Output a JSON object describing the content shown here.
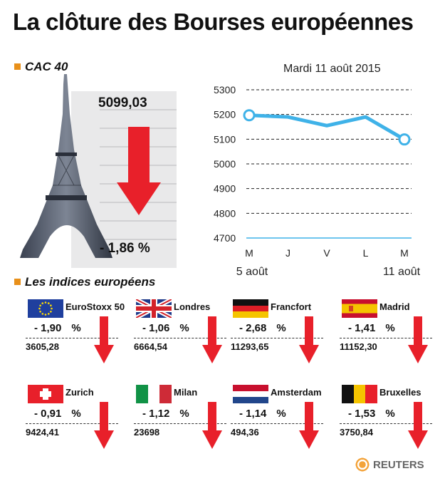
{
  "title": "La clôture des Bourses européennes",
  "cac": {
    "section_label": "CAC 40",
    "value": "5099,03",
    "change": "- 1,86  %"
  },
  "date": "Mardi 11 août 2015",
  "chart_data": {
    "type": "line",
    "x": [
      "M",
      "J",
      "V",
      "L",
      "M"
    ],
    "x_sublabels": [
      "5 août",
      "",
      "",
      "",
      "11 août"
    ],
    "series": [
      {
        "values": [
          5197,
          5190,
          5155,
          5190,
          5099
        ]
      }
    ],
    "ylim": [
      4700,
      5300
    ],
    "yticks": [
      4700,
      4800,
      4900,
      5000,
      5100,
      5200,
      5300
    ],
    "grid": "dashed horizontal",
    "color": "#3fb2e8"
  },
  "indices_label": "Les indices européens",
  "indices": [
    {
      "name": "EuroStoxx 50",
      "change": "- 1,90",
      "unit": "%",
      "value": "3605,28",
      "flag": "eu"
    },
    {
      "name": "Londres",
      "change": "- 1,06",
      "unit": "%",
      "value": "6664,54",
      "flag": "uk"
    },
    {
      "name": "Francfort",
      "change": "- 2,68",
      "unit": "%",
      "value": "11293,65",
      "flag": "de"
    },
    {
      "name": "Madrid",
      "change": "- 1,41",
      "unit": "%",
      "value": "11152,30",
      "flag": "es"
    },
    {
      "name": "Zurich",
      "change": "- 0,91",
      "unit": "%",
      "value": "9424,41",
      "flag": "ch"
    },
    {
      "name": "Milan",
      "change": "- 1,12",
      "unit": "%",
      "value": "23698",
      "flag": "it"
    },
    {
      "name": "Amsterdam",
      "change": "- 1,14",
      "unit": "%",
      "value": "494,36",
      "flag": "nl"
    },
    {
      "name": "Bruxelles",
      "change": "- 1,53",
      "unit": "%",
      "value": "3750,84",
      "flag": "be"
    }
  ],
  "colors": {
    "arrow": "#e8202a",
    "accent": "#e8901a",
    "line": "#3fb2e8"
  },
  "source": "REUTERS"
}
